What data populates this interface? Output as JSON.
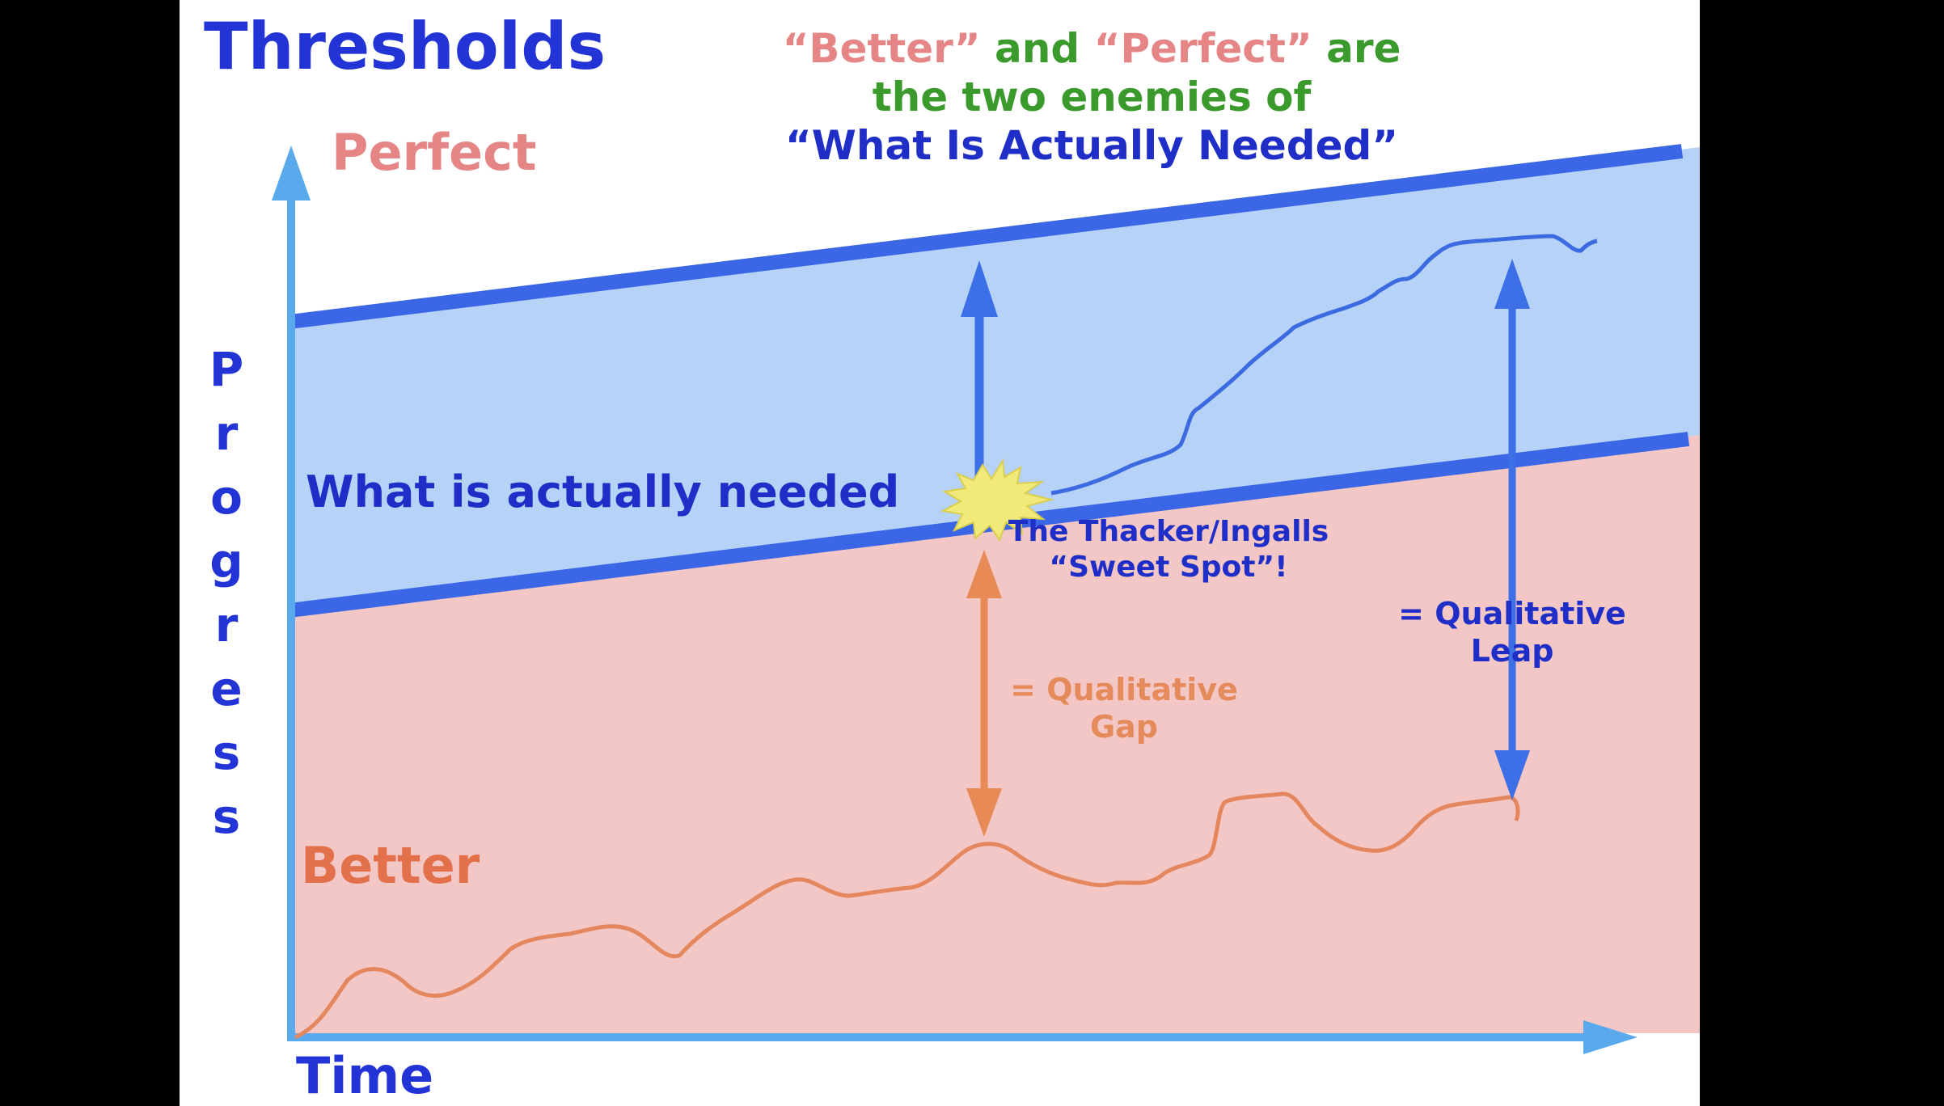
{
  "title": "Thresholds",
  "quote": {
    "line1_a": "“Better”",
    "line1_b": " and ",
    "line1_c": "“Perfect”",
    "line1_d": " are",
    "line2": "the two enemies of",
    "line3": "“What Is Actually Needed”"
  },
  "labels": {
    "perfect": "Perfect",
    "better": "Better",
    "needed": "What is actually needed",
    "time": "Time",
    "progress_letters": [
      "P",
      "r",
      "o",
      "g",
      "r",
      "e",
      "s",
      "s"
    ]
  },
  "annotations": {
    "sweet_line1": "The Thacker/Ingalls",
    "sweet_line2": "“Sweet Spot”!",
    "gap_line1": "= Qualitative",
    "gap_line2": "Gap",
    "leap_line1": "= Qualitative",
    "leap_line2": "Leap"
  },
  "colors": {
    "blue_band": "#b6d3f7",
    "pink_band": "#f2c7c6",
    "boundary_blue": "#3b66e6",
    "axis_blue": "#5aa9ec",
    "better_line": "#e4875e",
    "perfect_line": "#3c6ae0",
    "gap_arrow": "#e88a55",
    "leap_arrow": "#3d6fe6",
    "burst": "#f1ea7a"
  }
}
